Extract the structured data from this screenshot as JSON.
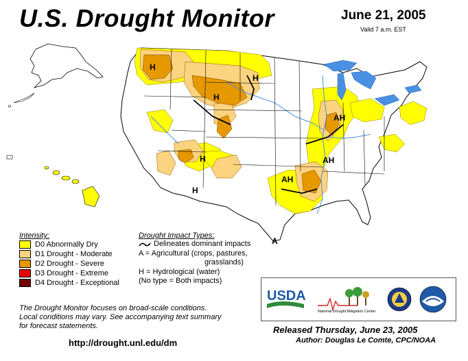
{
  "header": {
    "title": "U.S. Drought Monitor",
    "date": "June 21, 2005",
    "valid": "Valid 7 a.m. EST"
  },
  "map": {
    "labels": [
      {
        "id": "nw-idaho",
        "text": "H"
      },
      {
        "id": "n-dakota",
        "text": "H"
      },
      {
        "id": "wyoming",
        "text": "H"
      },
      {
        "id": "illinois",
        "text": "AH"
      },
      {
        "id": "arkansas",
        "text": "AH"
      },
      {
        "id": "oklahoma",
        "text": "AH"
      },
      {
        "id": "new-mexico",
        "text": "H"
      },
      {
        "id": "arizona",
        "text": "H"
      },
      {
        "id": "texas",
        "text": "A"
      }
    ],
    "colors": {
      "d0": "#ffff00",
      "d1": "#fcd37f",
      "d2": "#e69800",
      "d3": "#e60000",
      "d4": "#730000",
      "water": "#4a90e2",
      "land": "#ffffff",
      "boundary": "#000000"
    }
  },
  "legend": {
    "intensity_title": "Intensity:",
    "items": [
      {
        "label": "D0 Abnormally Dry",
        "color": "#ffff00"
      },
      {
        "label": "D1 Drought - Moderate",
        "color": "#fcd37f"
      },
      {
        "label": "D2 Drought - Severe",
        "color": "#e69800"
      },
      {
        "label": "D3 Drought - Extreme",
        "color": "#e60000"
      },
      {
        "label": "D4 Drought - Exceptional",
        "color": "#730000"
      }
    ],
    "impact_title": "Drought Impact Types:",
    "impact_lines": [
      "Delineates dominant impacts",
      "A = Agricultural (crops, pastures,",
      "grasslands)",
      "H = Hydrological (water)",
      "(No type = Both impacts)"
    ]
  },
  "footer": {
    "note_lines": [
      "The Drought Monitor focuses on broad-scale conditions.",
      "Local conditions may vary.  See accompanying text summary",
      "for forecast statements."
    ],
    "url": "http://drought.unl.edu/dm",
    "released": "Released Thursday, June 23, 2005",
    "author": "Author:  Douglas Le Comte, CPC/NOAA"
  },
  "logos": {
    "usda": "USDA",
    "ndmc": "National Drought Mitigation Center"
  }
}
